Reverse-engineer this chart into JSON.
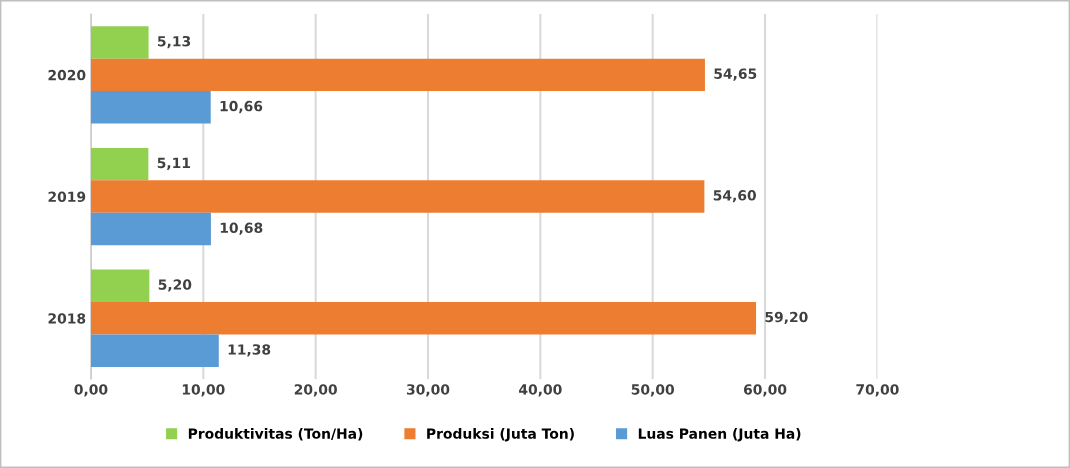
{
  "chart_data": {
    "type": "bar",
    "orientation": "horizontal",
    "categories": [
      "2020",
      "2019",
      "2018"
    ],
    "series": [
      {
        "name": "Produktivitas (Ton/Ha)",
        "color": "#92d050",
        "values": [
          5.13,
          5.11,
          5.2
        ],
        "value_labels": [
          "5,13",
          "5,11",
          "5,20"
        ]
      },
      {
        "name": "Produksi (Juta Ton)",
        "color": "#ed7d31",
        "values": [
          54.65,
          54.6,
          59.2
        ],
        "value_labels": [
          "54,65",
          "54,60",
          "59,20"
        ]
      },
      {
        "name": "Luas Panen (Juta Ha)",
        "color": "#5b9bd5",
        "values": [
          10.66,
          10.68,
          11.38
        ],
        "value_labels": [
          "10,66",
          "10,68",
          "11,38"
        ]
      }
    ],
    "xlim": [
      0,
      70
    ],
    "xticks": [
      {
        "value": 0,
        "label": "0,00"
      },
      {
        "value": 10,
        "label": "10,00"
      },
      {
        "value": 20,
        "label": "20,00"
      },
      {
        "value": 30,
        "label": "30,00"
      },
      {
        "value": 40,
        "label": "40,00"
      },
      {
        "value": 50,
        "label": "50,00"
      },
      {
        "value": 60,
        "label": "60,00"
      },
      {
        "value": 70,
        "label": "70,00"
      }
    ],
    "grid": "x",
    "legend": "bottom"
  }
}
